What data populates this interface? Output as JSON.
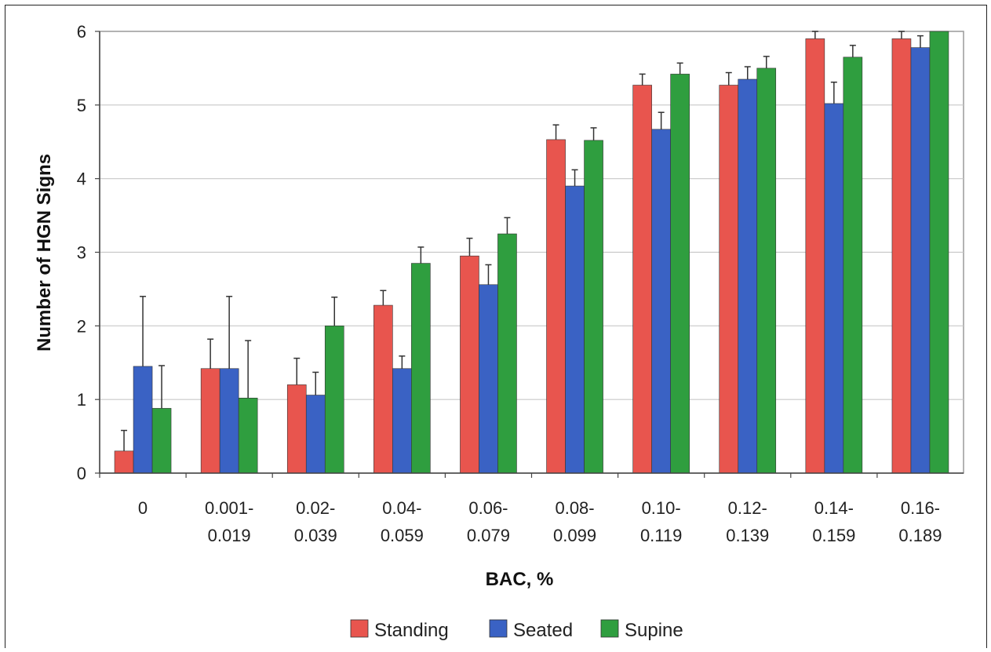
{
  "chart_data": {
    "type": "bar",
    "title": "",
    "xlabel": "BAC, %",
    "ylabel": "Number of HGN Signs",
    "ylim": [
      0,
      6
    ],
    "yticks": [
      "0",
      "1",
      "2",
      "3",
      "4",
      "5",
      "6"
    ],
    "grid": true,
    "legend_position": "bottom",
    "categories": [
      [
        "0"
      ],
      [
        "0.001-",
        "0.019"
      ],
      [
        "0.02-",
        "0.039"
      ],
      [
        "0.04-",
        "0.059"
      ],
      [
        "0.06-",
        "0.079"
      ],
      [
        "0.08-",
        "0.099"
      ],
      [
        "0.10-",
        "0.119"
      ],
      [
        "0.12-",
        "0.139"
      ],
      [
        "0.14-",
        "0.159"
      ],
      [
        "0.16-",
        "0.189"
      ]
    ],
    "series": [
      {
        "name": "Standing",
        "color": "#e8554e",
        "values": [
          0.3,
          1.42,
          1.2,
          2.28,
          2.95,
          4.53,
          5.27,
          5.27,
          5.9,
          5.9
        ],
        "error": [
          0.28,
          0.4,
          0.36,
          0.2,
          0.24,
          0.2,
          0.15,
          0.17,
          0.1,
          0.1
        ]
      },
      {
        "name": "Seated",
        "color": "#3a62c4",
        "values": [
          1.45,
          1.42,
          1.06,
          1.42,
          2.56,
          3.9,
          4.67,
          5.35,
          5.02,
          5.78
        ],
        "error": [
          0.95,
          0.98,
          0.31,
          0.17,
          0.27,
          0.22,
          0.23,
          0.17,
          0.29,
          0.16
        ]
      },
      {
        "name": "Supine",
        "color": "#2f9e3f",
        "values": [
          0.88,
          1.02,
          2.0,
          2.85,
          3.25,
          4.52,
          5.42,
          5.5,
          5.65,
          6.0
        ],
        "error": [
          0.58,
          0.78,
          0.39,
          0.22,
          0.22,
          0.17,
          0.15,
          0.16,
          0.16,
          0.0
        ]
      }
    ]
  }
}
